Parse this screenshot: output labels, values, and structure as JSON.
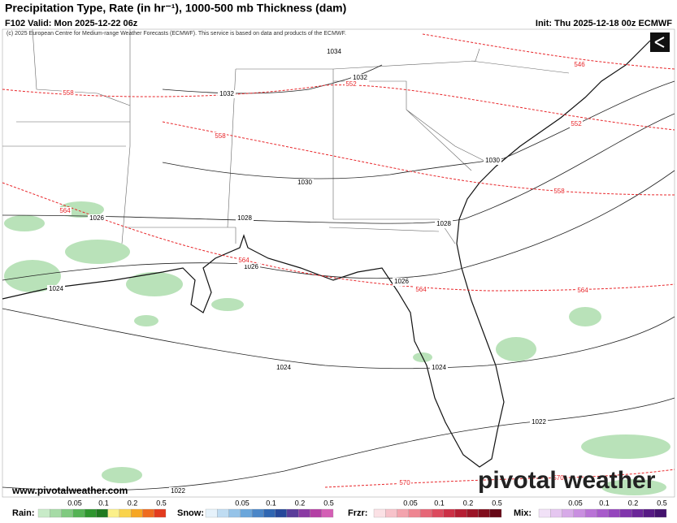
{
  "header": {
    "title": "Precipitation Type, Rate (in hr⁻¹), 1000-500 mb Thickness (dam)",
    "valid": "F102 Valid: Mon 2025-12-22 06z",
    "init": "Init: Thu 2025-12-18 00z ECMWF"
  },
  "copyright": "(c) 2025 European Centre for Medium-range Weather Forecasts (ECMWF). This service is based on data and products of the ECMWF.",
  "website": "www.pivotalweather.com",
  "logo": "pivotal weather",
  "isobar_labels": [
    1034,
    1032,
    1032,
    1030,
    1030,
    1028,
    1028,
    1026,
    1026,
    1026,
    1024,
    1024,
    1024,
    1022,
    1022
  ],
  "thickness_labels": [
    546,
    552,
    552,
    558,
    558,
    558,
    564,
    564,
    564,
    564,
    570,
    570
  ],
  "legend": [
    {
      "label": "Rain:",
      "ticks": [
        "0.05",
        "0.1",
        "0.2",
        "0.5"
      ]
    },
    {
      "label": "Snow:",
      "ticks": [
        "0.05",
        "0.1",
        "0.2",
        "0.5"
      ]
    },
    {
      "label": "Frzr:",
      "ticks": [
        "0.05",
        "0.1",
        "0.2",
        "0.5"
      ]
    },
    {
      "label": "Mix:",
      "ticks": [
        "0.05",
        "0.1",
        "0.2",
        "0.5"
      ]
    }
  ]
}
